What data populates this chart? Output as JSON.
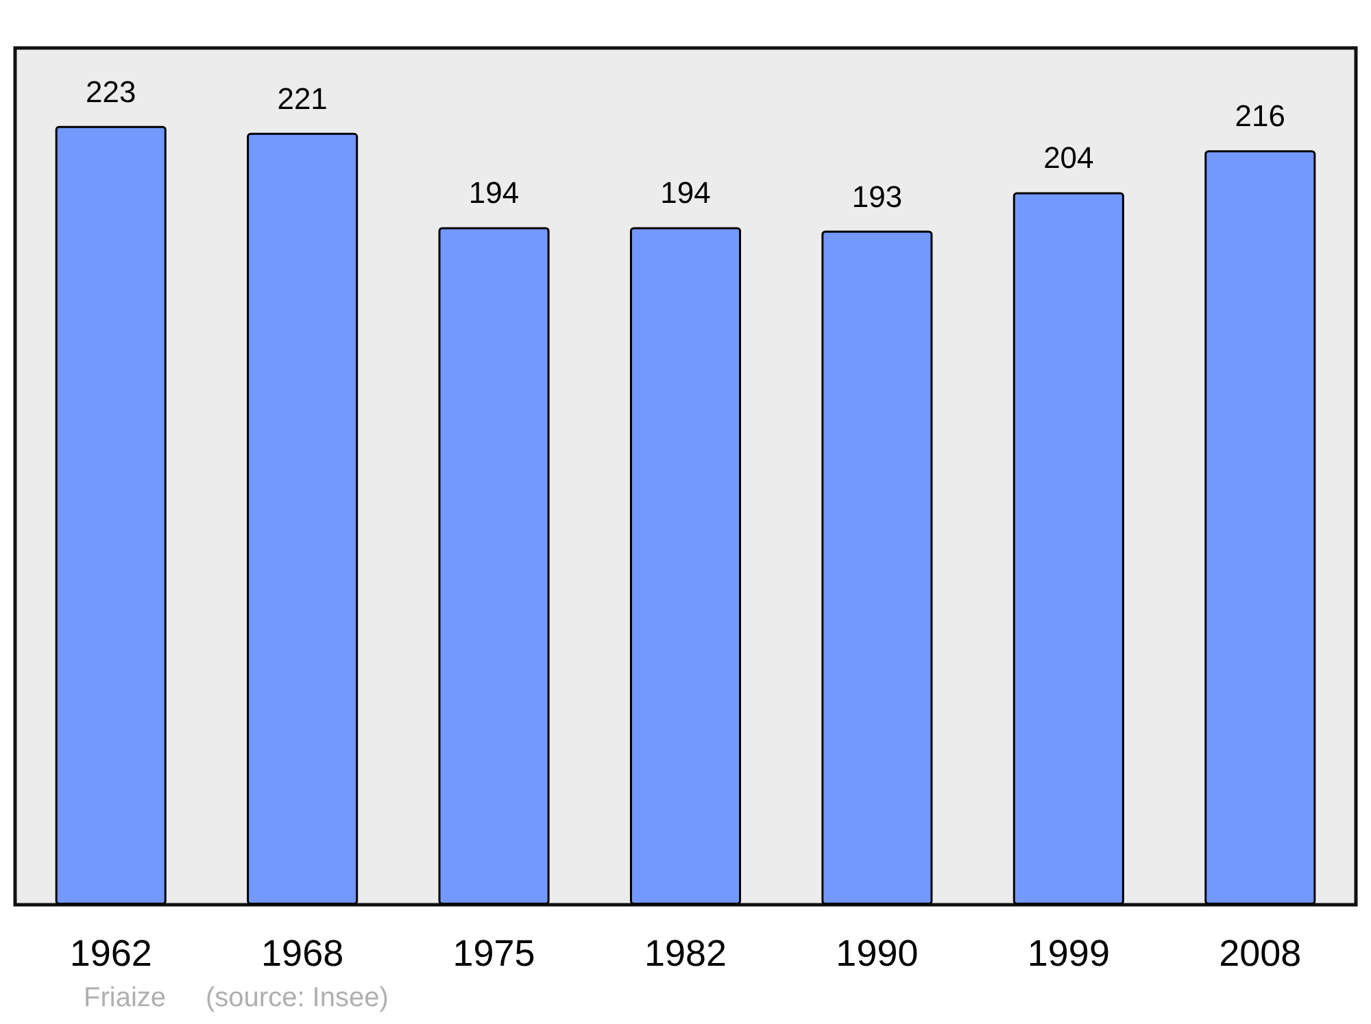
{
  "chart_data": {
    "type": "bar",
    "categories": [
      "1962",
      "1968",
      "1975",
      "1982",
      "1990",
      "1999",
      "2008"
    ],
    "values": [
      223,
      221,
      194,
      194,
      193,
      204,
      216
    ],
    "color": "#7399ff",
    "data_labels": true,
    "annotations": [
      "Friaize",
      "(source: Insee)"
    ]
  }
}
